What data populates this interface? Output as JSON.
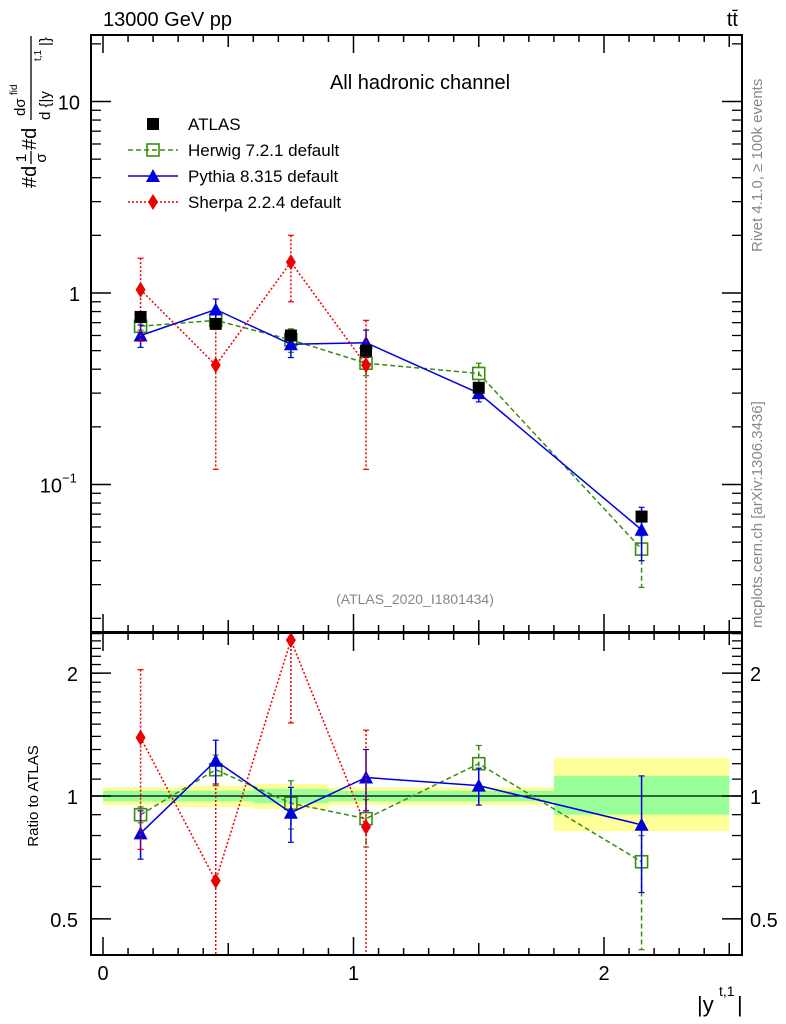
{
  "header": {
    "left": "13000 GeV pp",
    "right": "tt̄"
  },
  "side_labels": {
    "rivet": "Rivet 4.1.0, ≥ 100k events",
    "mcplots": "mcplots.cern.ch [arXiv:1306.3436]"
  },
  "colors": {
    "atlas": "#000000",
    "herwig": "#3a8c0f",
    "pythia": "#0000dd",
    "sherpa": "#ee0000",
    "band_inner": "#99ff99",
    "band_outer": "#ffff99"
  },
  "chart_data": [
    {
      "type": "line",
      "panel": "main",
      "title": "All hadronic channel",
      "analysis_tag": "(ATLAS_2020_I1801434)",
      "ylabel": "#d¹⁄σ#d dσᶠᶦᵈ / d {|y^{t,1}|}",
      "ylabel_parts": {
        "prefix": "#d",
        "frac1_num": "1",
        "frac1_den": "σ",
        "mid": "#d",
        "frac2_num": "dσ",
        "frac2_num_sup": "fid",
        "frac2_den": "d {|y",
        "frac2_den_sup": "t,1",
        "frac2_den_suffix": "|}"
      },
      "xlabel": "",
      "yscale": "log",
      "ylim": [
        0.0234,
        21.5
      ],
      "xlim": [
        -0.06,
        2.58
      ],
      "yticks": [
        {
          "value": 10,
          "label": "10"
        },
        {
          "value": 1,
          "label": "1"
        },
        {
          "value": 0.1,
          "label": "10",
          "sup": "−1"
        }
      ],
      "legend_position": "top-left",
      "bins": [
        [
          0,
          0.3
        ],
        [
          0.3,
          0.6
        ],
        [
          0.6,
          0.9
        ],
        [
          0.9,
          1.2
        ],
        [
          1.2,
          1.8
        ],
        [
          1.8,
          2.5
        ]
      ],
      "x": [
        0.15,
        0.45,
        0.75,
        1.05,
        1.5,
        2.15
      ],
      "series": [
        {
          "name": "ATLAS",
          "key": "atlas",
          "marker": "filled-square",
          "line": "none",
          "values": [
            0.75,
            0.69,
            0.6,
            0.5,
            0.32,
            0.068
          ],
          "err_up": [
            0.03,
            0.03,
            0.025,
            0.02,
            0.015,
            0.004
          ],
          "err_down": [
            0.03,
            0.03,
            0.025,
            0.02,
            0.015,
            0.004
          ]
        },
        {
          "name": "Herwig 7.2.1 default",
          "key": "herwig",
          "marker": "open-square",
          "line": "dashed",
          "values": [
            0.67,
            0.72,
            0.57,
            0.43,
            0.38,
            0.046
          ],
          "err_up": [
            0.03,
            0.07,
            0.08,
            0.05,
            0.05,
            0.008
          ],
          "err_down": [
            0.03,
            0.07,
            0.08,
            0.06,
            0.05,
            0.017
          ]
        },
        {
          "name": "Pythia 8.315 default",
          "key": "pythia",
          "marker": "filled-triangle",
          "line": "solid",
          "values": [
            0.6,
            0.82,
            0.54,
            0.55,
            0.3,
            0.058
          ],
          "err_up": [
            0.08,
            0.11,
            0.08,
            0.09,
            0.03,
            0.018
          ],
          "err_down": [
            0.08,
            0.11,
            0.08,
            0.09,
            0.03,
            0.018
          ]
        },
        {
          "name": "Sherpa 2.2.4 default",
          "key": "sherpa",
          "marker": "filled-diamond",
          "line": "dotted",
          "values": [
            1.04,
            0.42,
            1.45,
            0.42
          ],
          "x": [
            0.15,
            0.45,
            0.75,
            1.05
          ],
          "err_up": [
            0.48,
            0.3,
            0.55,
            0.3
          ],
          "err_down": [
            0.48,
            0.3,
            0.55,
            0.3
          ]
        }
      ]
    },
    {
      "type": "line",
      "panel": "ratio",
      "ylabel": "Ratio to ATLAS",
      "xlabel": "|y^{t,1}|",
      "xlabel_parts": {
        "base": "|y",
        "sup": "t,1",
        "suffix": "|"
      },
      "yscale": "log",
      "ylim": [
        0.405,
        2.5
      ],
      "xlim": [
        -0.06,
        2.58
      ],
      "yticks": [
        {
          "value": 2,
          "label": "2"
        },
        {
          "value": 1,
          "label": "1"
        },
        {
          "value": 0.5,
          "label": "0.5"
        }
      ],
      "xticks": [
        {
          "value": 0,
          "label": "0"
        },
        {
          "value": 1,
          "label": "1"
        },
        {
          "value": 2,
          "label": "2"
        }
      ],
      "reference_line": 1,
      "bands": {
        "bins": [
          [
            0,
            0.3
          ],
          [
            0.3,
            0.6
          ],
          [
            0.6,
            0.9
          ],
          [
            0.9,
            1.2
          ],
          [
            1.2,
            1.8
          ],
          [
            1.8,
            2.5
          ]
        ],
        "inner_up": [
          1.03,
          1.03,
          1.04,
          1.03,
          1.03,
          1.12
        ],
        "inner_down": [
          0.97,
          0.97,
          0.96,
          0.97,
          0.97,
          0.9
        ],
        "outer_up": [
          1.05,
          1.06,
          1.07,
          1.05,
          1.05,
          1.24
        ],
        "outer_down": [
          0.95,
          0.94,
          0.93,
          0.95,
          0.95,
          0.82
        ]
      },
      "x": [
        0.15,
        0.45,
        0.75,
        1.05,
        1.5,
        2.15
      ],
      "series": [
        {
          "name": "Herwig 7.2.1 default",
          "key": "herwig",
          "marker": "open-square",
          "line": "dashed",
          "values": [
            0.9,
            1.16,
            0.96,
            0.88,
            1.2,
            0.69
          ],
          "err_up": [
            0.04,
            0.1,
            0.13,
            0.1,
            0.13,
            0.11
          ],
          "err_down": [
            0.04,
            0.1,
            0.13,
            0.13,
            0.13,
            0.27
          ]
        },
        {
          "name": "Pythia 8.315 default",
          "key": "pythia",
          "marker": "filled-triangle",
          "line": "solid",
          "values": [
            0.81,
            1.22,
            0.91,
            1.11,
            1.06,
            0.85
          ],
          "err_up": [
            0.11,
            0.15,
            0.14,
            0.19,
            0.11,
            0.27
          ],
          "err_down": [
            0.11,
            0.15,
            0.14,
            0.19,
            0.11,
            0.27
          ]
        },
        {
          "name": "Sherpa 2.2.4 default",
          "key": "sherpa",
          "marker": "filled-diamond",
          "line": "dotted",
          "x": [
            0.15,
            0.45,
            0.75,
            1.05
          ],
          "values": [
            1.39,
            0.62,
            2.41,
            0.84
          ],
          "err_up": [
            0.65,
            0.45,
            0.9,
            0.61
          ],
          "err_down": [
            0.65,
            0.45,
            0.9,
            0.61
          ]
        }
      ]
    }
  ]
}
